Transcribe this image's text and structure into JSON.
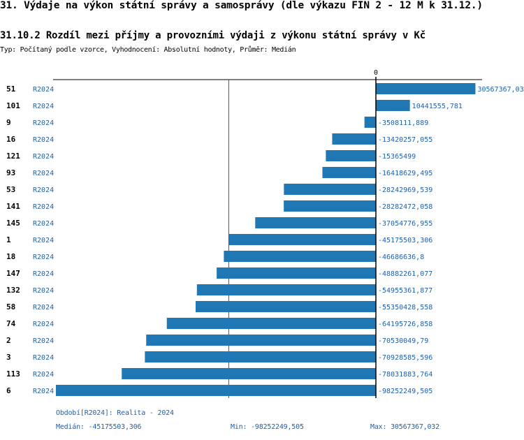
{
  "header": {
    "title": "31. Výdaje na výkon státní správy a samosprávy (dle výkazu FIN 2 - 12 M k 31.12.)",
    "subtitle": "31.10.2 Rozdíl mezi příjmy a provozními výdaji z výkonu státní správy v Kč",
    "typ": "Typ: Počítaný podle vzorce, Vyhodnocení: Absolutní hodnoty, Průměr: Medián"
  },
  "footer": {
    "period": "Období[R2024]: Realita - 2024",
    "median": "Medián: -45175503,306",
    "min": "Min: -98252249,505",
    "max": "Max: 30567367,032"
  },
  "colors": {
    "bar": "#1f77b4",
    "text_blue": "#1f5fa8"
  },
  "chart_data": {
    "type": "bar",
    "orientation": "horizontal",
    "zero_label": "0",
    "series_label": "R2024",
    "median": -45175503.306,
    "median_line": true,
    "categories": [
      "51",
      "101",
      "9",
      "16",
      "121",
      "93",
      "53",
      "141",
      "145",
      "1",
      "18",
      "147",
      "132",
      "58",
      "74",
      "2",
      "3",
      "113",
      "6"
    ],
    "values": [
      30567367.03,
      10441555.781,
      -3508111.889,
      -13420257.055,
      -15365499,
      -16418629.495,
      -28242969.539,
      -28282472.058,
      -37054776.955,
      -45175503.306,
      -46686636.8,
      -48882261.077,
      -54955361.877,
      -55350428.558,
      -64195726.858,
      -70530049.79,
      -70928585.596,
      -78031883.764,
      -98252249.505
    ],
    "value_labels": [
      "30567367,03",
      "10441555,781",
      "-3508111,889",
      "-13420257,055",
      "-15365499",
      "-16418629,495",
      "-28242969,539",
      "-28282472,058",
      "-37054776,955",
      "-45175503,306",
      "-46686636,8",
      "-48882261,077",
      "-54955361,877",
      "-55350428,558",
      "-64195726,858",
      "-70530049,79",
      "-70928585,596",
      "-78031883,764",
      "-98252249,505"
    ]
  }
}
